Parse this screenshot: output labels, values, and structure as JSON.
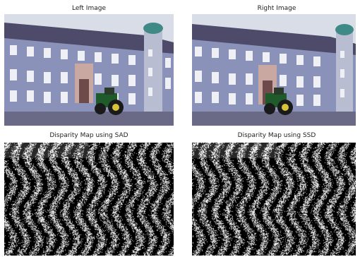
{
  "panels": {
    "left_image": {
      "caption": "Left Image"
    },
    "right_image": {
      "caption": "Right Image"
    },
    "disparity_sad": {
      "caption": "Disparity Map using SAD"
    },
    "disparity_ssd": {
      "caption": "Disparity Map using SSD"
    }
  },
  "colors": {
    "sky": "#d9dde8",
    "facade": "#8a92ba",
    "roof": "#4e4a6a",
    "window": "#f0f0f4",
    "ground": "#6a6a86",
    "tractor_green": "#1f5a2a",
    "tower_dome": "#3f8a86"
  }
}
